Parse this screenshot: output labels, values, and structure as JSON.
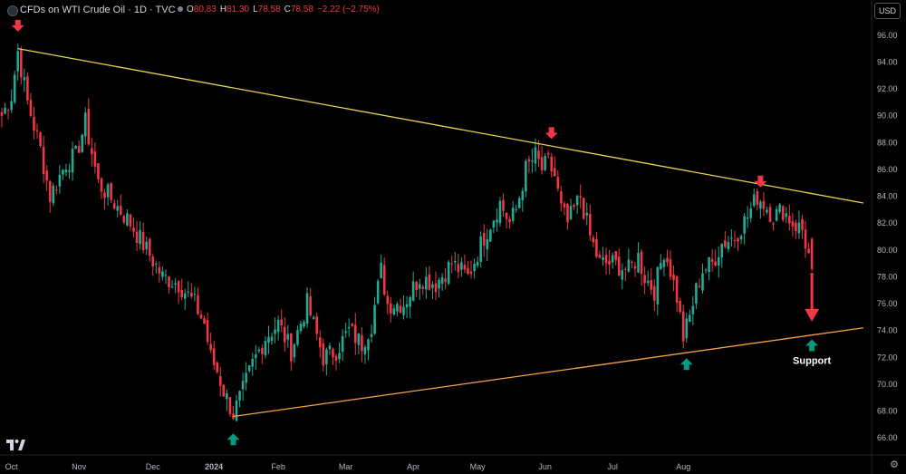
{
  "header": {
    "title": "CFDs on WTI Crude Oil · 1D · TVC",
    "ohlc": [
      {
        "key": "O",
        "value": "80.83"
      },
      {
        "key": "H",
        "value": "81.30"
      },
      {
        "key": "L",
        "value": "78.58"
      },
      {
        "key": "C",
        "value": "78.58"
      },
      {
        "key": "",
        "value": "−2.22 (−2.75%)"
      }
    ],
    "currency": "USD"
  },
  "colors": {
    "up": "#22ab94",
    "down": "#f23645",
    "resistance_line": "#e8d44d",
    "support_line": "#f5a244",
    "marker_down": "#f23645",
    "marker_up": "#089981"
  },
  "annotations": {
    "support_label": "Support"
  },
  "chart_data": {
    "type": "candlestick",
    "ylim": [
      65.0,
      97.0
    ],
    "x_tick_labels": [
      "Oct",
      "Nov",
      "Dec",
      "2024",
      "Feb",
      "Mar",
      "Apr",
      "May",
      "Jun",
      "Jul",
      "Aug"
    ],
    "y_tick_labels": [
      "66.00",
      "68.00",
      "70.00",
      "72.00",
      "74.00",
      "76.00",
      "78.00",
      "80.00",
      "82.00",
      "84.00",
      "86.00",
      "88.00",
      "90.00",
      "92.00",
      "94.00",
      "96.00"
    ],
    "close_path": [
      [
        0,
        90.0
      ],
      [
        3,
        91.5
      ],
      [
        5,
        94.8
      ],
      [
        8,
        91.0
      ],
      [
        12,
        87.5
      ],
      [
        15,
        84.0
      ],
      [
        20,
        86.5
      ],
      [
        23,
        87.0
      ],
      [
        26,
        89.5
      ],
      [
        30,
        85.0
      ],
      [
        35,
        83.5
      ],
      [
        40,
        82.0
      ],
      [
        45,
        80.0
      ],
      [
        50,
        78.0
      ],
      [
        55,
        77.5
      ],
      [
        60,
        76.0
      ],
      [
        63,
        74.5
      ],
      [
        65,
        72.0
      ],
      [
        67,
        71.0
      ],
      [
        69,
        69.5
      ],
      [
        72,
        67.8
      ],
      [
        75,
        69.5
      ],
      [
        78,
        71.5
      ],
      [
        82,
        73.5
      ],
      [
        86,
        74.5
      ],
      [
        90,
        72.5
      ],
      [
        95,
        76.0
      ],
      [
        100,
        72.0
      ],
      [
        104,
        72.5
      ],
      [
        108,
        74.0
      ],
      [
        112,
        73.0
      ],
      [
        115,
        74.5
      ],
      [
        118,
        78.5
      ],
      [
        120,
        76.0
      ],
      [
        125,
        76.0
      ],
      [
        130,
        78.0
      ],
      [
        135,
        77.5
      ],
      [
        140,
        79.0
      ],
      [
        145,
        78.0
      ],
      [
        150,
        81.0
      ],
      [
        155,
        83.5
      ],
      [
        158,
        82.0
      ],
      [
        160,
        83.0
      ],
      [
        163,
        86.0
      ],
      [
        166,
        87.0
      ],
      [
        168,
        86.0
      ],
      [
        170,
        86.5
      ],
      [
        172,
        85.5
      ],
      [
        174,
        83.0
      ],
      [
        176,
        82.0
      ],
      [
        180,
        84.0
      ],
      [
        183,
        81.0
      ],
      [
        186,
        79.0
      ],
      [
        190,
        79.0
      ],
      [
        195,
        78.5
      ],
      [
        198,
        79.5
      ],
      [
        200,
        78.0
      ],
      [
        203,
        77.0
      ],
      [
        206,
        80.0
      ],
      [
        208,
        78.5
      ],
      [
        210,
        76.5
      ],
      [
        212,
        73.5
      ],
      [
        214,
        75.0
      ],
      [
        216,
        77.0
      ],
      [
        218,
        78.5
      ],
      [
        221,
        79.0
      ],
      [
        224,
        80.5
      ],
      [
        228,
        81.0
      ],
      [
        232,
        82.5
      ],
      [
        235,
        84.0
      ],
      [
        237,
        83.5
      ],
      [
        240,
        82.5
      ],
      [
        243,
        83.0
      ],
      [
        246,
        82.0
      ],
      [
        249,
        81.5
      ],
      [
        252,
        78.6
      ]
    ],
    "resistance_line": {
      "x": [
        5,
        268
      ],
      "y": [
        95.0,
        83.5
      ]
    },
    "support_line": {
      "x": [
        72,
        268
      ],
      "y": [
        67.6,
        74.2
      ]
    },
    "markers_down": [
      [
        5,
        96.6
      ],
      [
        171,
        88.6
      ],
      [
        236,
        85.0
      ]
    ],
    "markers_up": [
      [
        72,
        66.0
      ],
      [
        213,
        71.6
      ],
      [
        252,
        73.0
      ]
    ],
    "projection_arrow": {
      "x": 252,
      "y_from": 78.3,
      "y_to": 74.8
    },
    "support_label_anchor": [
      252,
      71.5
    ]
  }
}
